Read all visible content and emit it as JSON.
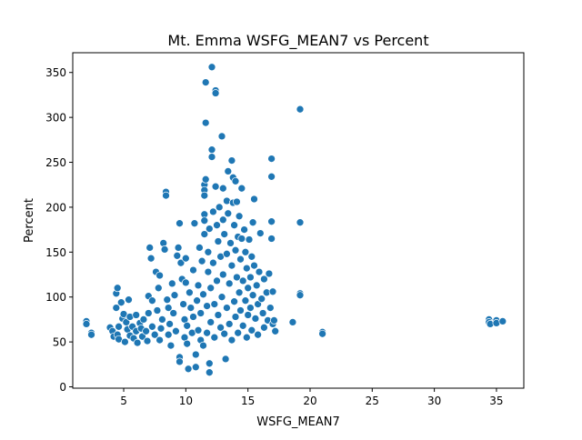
{
  "chart_data": {
    "type": "scatter",
    "title": "Mt. Emma WSFG_MEAN7 vs Percent",
    "xlabel": "WSFG_MEAN7",
    "ylabel": "Percent",
    "xlim": [
      0.9,
      37.2
    ],
    "ylim": [
      -1.5,
      372
    ],
    "xticks": [
      5,
      10,
      15,
      20,
      25,
      30,
      35
    ],
    "yticks": [
      0,
      50,
      100,
      150,
      200,
      250,
      300,
      350
    ],
    "grid": false,
    "marker_color": "#1f77b4",
    "marker_edge": "#ffffff",
    "points": [
      [
        2.0,
        73
      ],
      [
        2.0,
        70
      ],
      [
        2.4,
        60
      ],
      [
        2.4,
        58
      ],
      [
        3.9,
        66
      ],
      [
        4.1,
        62
      ],
      [
        4.2,
        56
      ],
      [
        4.4,
        104
      ],
      [
        4.5,
        110
      ],
      [
        4.4,
        88
      ],
      [
        4.5,
        58
      ],
      [
        4.6,
        67
      ],
      [
        4.6,
        53
      ],
      [
        4.8,
        94
      ],
      [
        4.9,
        76
      ],
      [
        5.0,
        81
      ],
      [
        5.1,
        50
      ],
      [
        5.2,
        72
      ],
      [
        5.3,
        64
      ],
      [
        5.4,
        97
      ],
      [
        5.5,
        57
      ],
      [
        5.5,
        78
      ],
      [
        5.7,
        67
      ],
      [
        5.8,
        54
      ],
      [
        6.0,
        62
      ],
      [
        6.0,
        80
      ],
      [
        6.1,
        49
      ],
      [
        6.3,
        71
      ],
      [
        6.4,
        65
      ],
      [
        6.5,
        56
      ],
      [
        6.6,
        75
      ],
      [
        6.8,
        62
      ],
      [
        6.9,
        51
      ],
      [
        7.0,
        82
      ],
      [
        7.0,
        101
      ],
      [
        7.1,
        155
      ],
      [
        7.2,
        143
      ],
      [
        7.3,
        96
      ],
      [
        7.3,
        67
      ],
      [
        7.5,
        58
      ],
      [
        7.6,
        128
      ],
      [
        7.7,
        85
      ],
      [
        7.8,
        110
      ],
      [
        7.9,
        124
      ],
      [
        7.9,
        52
      ],
      [
        8.0,
        65
      ],
      [
        8.1,
        75
      ],
      [
        8.2,
        160
      ],
      [
        8.3,
        153
      ],
      [
        8.4,
        217
      ],
      [
        8.4,
        213
      ],
      [
        8.5,
        97
      ],
      [
        8.6,
        88
      ],
      [
        8.6,
        58
      ],
      [
        8.7,
        70
      ],
      [
        8.8,
        46
      ],
      [
        8.9,
        115
      ],
      [
        9.0,
        82
      ],
      [
        9.1,
        102
      ],
      [
        9.2,
        62
      ],
      [
        9.3,
        146
      ],
      [
        9.4,
        155
      ],
      [
        9.5,
        182
      ],
      [
        9.5,
        33
      ],
      [
        9.5,
        28
      ],
      [
        9.6,
        138
      ],
      [
        9.7,
        120
      ],
      [
        9.8,
        92
      ],
      [
        9.9,
        75
      ],
      [
        9.9,
        55
      ],
      [
        10.0,
        143
      ],
      [
        10.0,
        116
      ],
      [
        10.1,
        68
      ],
      [
        10.1,
        48
      ],
      [
        10.2,
        20
      ],
      [
        10.3,
        105
      ],
      [
        10.4,
        88
      ],
      [
        10.5,
        60
      ],
      [
        10.6,
        130
      ],
      [
        10.6,
        78
      ],
      [
        10.7,
        182
      ],
      [
        10.8,
        36
      ],
      [
        10.8,
        22
      ],
      [
        10.9,
        96
      ],
      [
        11.0,
        63
      ],
      [
        11.0,
        113
      ],
      [
        11.1,
        155
      ],
      [
        11.2,
        82
      ],
      [
        11.2,
        52
      ],
      [
        11.3,
        140
      ],
      [
        11.4,
        103
      ],
      [
        11.4,
        46
      ],
      [
        11.5,
        225
      ],
      [
        11.5,
        219
      ],
      [
        11.5,
        213
      ],
      [
        11.5,
        192
      ],
      [
        11.5,
        185
      ],
      [
        11.5,
        170
      ],
      [
        11.6,
        294
      ],
      [
        11.6,
        339
      ],
      [
        11.6,
        231
      ],
      [
        11.7,
        90
      ],
      [
        11.7,
        60
      ],
      [
        11.8,
        150
      ],
      [
        11.8,
        128
      ],
      [
        11.9,
        176
      ],
      [
        11.9,
        26
      ],
      [
        11.9,
        16
      ],
      [
        12.0,
        110
      ],
      [
        12.0,
        72
      ],
      [
        12.1,
        356
      ],
      [
        12.1,
        264
      ],
      [
        12.1,
        256
      ],
      [
        12.2,
        195
      ],
      [
        12.2,
        138
      ],
      [
        12.3,
        92
      ],
      [
        12.3,
        55
      ],
      [
        12.4,
        330
      ],
      [
        12.4,
        327
      ],
      [
        12.4,
        223
      ],
      [
        12.5,
        180
      ],
      [
        12.5,
        118
      ],
      [
        12.6,
        162
      ],
      [
        12.6,
        80
      ],
      [
        12.7,
        200
      ],
      [
        12.8,
        145
      ],
      [
        12.8,
        66
      ],
      [
        12.9,
        279
      ],
      [
        12.9,
        100
      ],
      [
        13.0,
        221
      ],
      [
        13.0,
        186
      ],
      [
        13.0,
        125
      ],
      [
        13.1,
        170
      ],
      [
        13.1,
        59
      ],
      [
        13.2,
        31
      ],
      [
        13.3,
        207
      ],
      [
        13.3,
        148
      ],
      [
        13.3,
        88
      ],
      [
        13.4,
        240
      ],
      [
        13.4,
        193
      ],
      [
        13.5,
        115
      ],
      [
        13.5,
        70
      ],
      [
        13.6,
        160
      ],
      [
        13.7,
        252
      ],
      [
        13.7,
        135
      ],
      [
        13.7,
        52
      ],
      [
        13.8,
        233
      ],
      [
        13.8,
        205
      ],
      [
        13.9,
        180
      ],
      [
        13.9,
        95
      ],
      [
        14.0,
        229
      ],
      [
        14.0,
        152
      ],
      [
        14.0,
        78
      ],
      [
        14.1,
        206
      ],
      [
        14.1,
        122
      ],
      [
        14.2,
        167
      ],
      [
        14.2,
        60
      ],
      [
        14.3,
        190
      ],
      [
        14.3,
        105
      ],
      [
        14.4,
        142
      ],
      [
        14.4,
        85
      ],
      [
        14.5,
        221
      ],
      [
        14.5,
        165
      ],
      [
        14.6,
        118
      ],
      [
        14.6,
        68
      ],
      [
        14.7,
        175
      ],
      [
        14.8,
        150
      ],
      [
        14.8,
        96
      ],
      [
        14.9,
        132
      ],
      [
        14.9,
        55
      ],
      [
        15.0,
        110
      ],
      [
        15.0,
        80
      ],
      [
        15.1,
        164
      ],
      [
        15.2,
        122
      ],
      [
        15.2,
        88
      ],
      [
        15.3,
        145
      ],
      [
        15.3,
        63
      ],
      [
        15.4,
        183
      ],
      [
        15.4,
        102
      ],
      [
        15.5,
        209
      ],
      [
        15.5,
        135
      ],
      [
        15.6,
        76
      ],
      [
        15.7,
        113
      ],
      [
        15.8,
        92
      ],
      [
        15.8,
        58
      ],
      [
        15.9,
        128
      ],
      [
        16.0,
        171
      ],
      [
        16.1,
        98
      ],
      [
        16.2,
        82
      ],
      [
        16.3,
        120
      ],
      [
        16.3,
        66
      ],
      [
        16.5,
        105
      ],
      [
        16.6,
        74
      ],
      [
        16.7,
        126
      ],
      [
        16.8,
        88
      ],
      [
        16.9,
        254
      ],
      [
        16.9,
        234
      ],
      [
        16.9,
        184
      ],
      [
        16.9,
        165
      ],
      [
        17.0,
        106
      ],
      [
        17.0,
        70
      ],
      [
        17.1,
        74
      ],
      [
        17.2,
        62
      ],
      [
        18.6,
        72
      ],
      [
        19.2,
        309
      ],
      [
        19.2,
        183
      ],
      [
        19.2,
        104
      ],
      [
        19.2,
        102
      ],
      [
        21.0,
        61
      ],
      [
        21.0,
        59
      ],
      [
        34.4,
        75
      ],
      [
        34.4,
        72
      ],
      [
        34.5,
        70
      ],
      [
        35.0,
        74
      ],
      [
        35.0,
        71
      ],
      [
        35.5,
        73
      ]
    ]
  }
}
